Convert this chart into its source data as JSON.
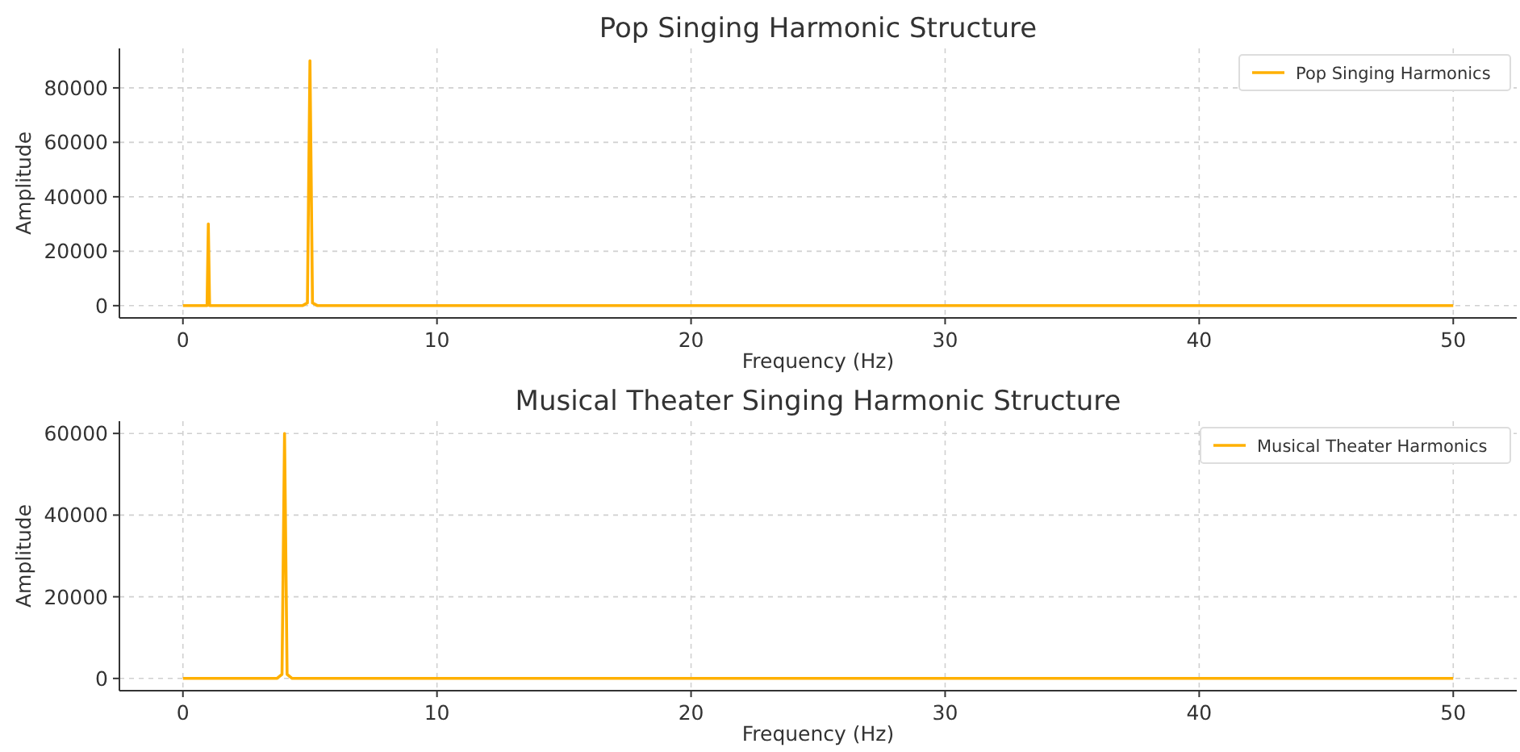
{
  "chart_data": [
    {
      "type": "line",
      "title": "Pop Singing Harmonic Structure",
      "xlabel": "Frequency (Hz)",
      "ylabel": "Amplitude",
      "xlim": [
        -2.5,
        52.5
      ],
      "xticks": [
        0,
        10,
        20,
        30,
        40,
        50
      ],
      "ylim": [
        -4500,
        94500
      ],
      "yticks": [
        0,
        20000,
        40000,
        60000,
        80000
      ],
      "grid": true,
      "legend": "top right",
      "series": [
        {
          "name": "Pop Singing Harmonics",
          "color": "#ffb000",
          "x": [
            0,
            0.95,
            1,
            1.05,
            4.7,
            4.9,
            5,
            5.1,
            5.3,
            50
          ],
          "values": [
            0,
            0,
            30000,
            0,
            0,
            1000,
            90000,
            1000,
            0,
            0
          ]
        }
      ]
    },
    {
      "type": "line",
      "title": "Musical Theater Singing Harmonic Structure",
      "xlabel": "Frequency (Hz)",
      "ylabel": "Amplitude",
      "xlim": [
        -2.5,
        52.5
      ],
      "xticks": [
        0,
        10,
        20,
        30,
        40,
        50
      ],
      "ylim": [
        -3000,
        63000
      ],
      "yticks": [
        0,
        20000,
        40000,
        60000
      ],
      "grid": true,
      "legend": "top right",
      "series": [
        {
          "name": "Musical Theater Harmonics",
          "color": "#ffb000",
          "x": [
            0,
            3.7,
            3.9,
            4,
            4.1,
            4.3,
            50
          ],
          "values": [
            0,
            0,
            1000,
            60000,
            1000,
            0,
            0
          ]
        }
      ]
    }
  ]
}
